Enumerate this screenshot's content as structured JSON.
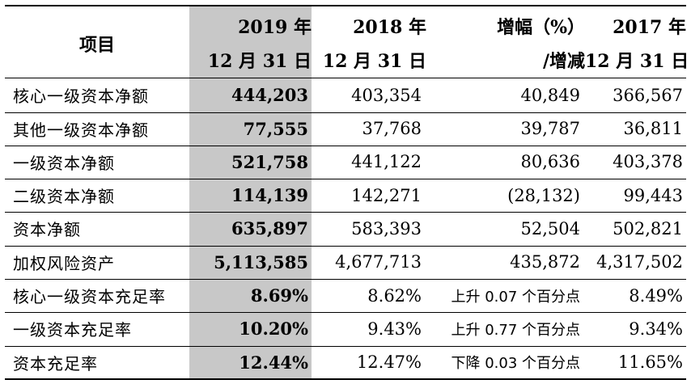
{
  "header": {
    "item": "项目",
    "col2019": [
      "2019 年",
      "12 月 31 日"
    ],
    "col2018": [
      "2018 年",
      "12 月 31 日"
    ],
    "colchg": [
      "增幅（%）",
      "/增减"
    ],
    "col2017": [
      "2017 年",
      "12 月 31 日"
    ]
  },
  "rows": [
    {
      "label": "核心一级资本净额",
      "v2019": "444,203",
      "v2018": "403,354",
      "chg": "40,849",
      "v2017": "366,567"
    },
    {
      "label": "其他一级资本净额",
      "v2019": "77,555",
      "v2018": "37,768",
      "chg": "39,787",
      "v2017": "36,811"
    },
    {
      "label": "一级资本净额",
      "v2019": "521,758",
      "v2018": "441,122",
      "chg": "80,636",
      "v2017": "403,378"
    },
    {
      "label": "二级资本净额",
      "v2019": "114,139",
      "v2018": "142,271",
      "chg": "(28,132)",
      "v2017": "99,443"
    },
    {
      "label": "资本净额",
      "v2019": "635,897",
      "v2018": "583,393",
      "chg": "52,504",
      "v2017": "502,821"
    },
    {
      "label": "加权风险资产",
      "v2019": "5,113,585",
      "v2018": "4,677,713",
      "chg": "435,872",
      "v2017": "4,317,502"
    },
    {
      "label": "核心一级资本充足率",
      "v2019": "8.69%",
      "v2018": "8.62%",
      "chg": "上升 0.07 个百分点",
      "v2017": "8.49%"
    },
    {
      "label": "一级资本充足率",
      "v2019": "10.20%",
      "v2018": "9.43%",
      "chg": "上升 0.77 个百分点",
      "v2017": "9.34%"
    },
    {
      "label": "资本充足率",
      "v2019": "12.44%",
      "v2018": "12.47%",
      "chg": "下降 0.03 个百分点",
      "v2017": "11.65%"
    }
  ]
}
